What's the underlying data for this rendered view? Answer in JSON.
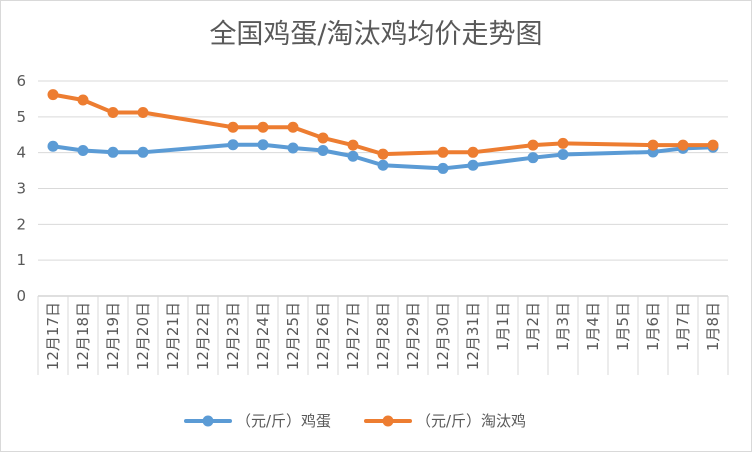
{
  "chart_data": {
    "type": "line",
    "title": "全国鸡蛋/淘汰鸡均价走势图",
    "categories": [
      "12月17日",
      "12月18日",
      "12月19日",
      "12月20日",
      "12月21日",
      "12月22日",
      "12月23日",
      "12月24日",
      "12月25日",
      "12月26日",
      "12月27日",
      "12月28日",
      "12月29日",
      "12月30日",
      "12月31日",
      "1月1日",
      "1月2日",
      "1月3日",
      "1月4日",
      "1月5日",
      "1月6日",
      "1月7日",
      "1月8日"
    ],
    "yticks": [
      "0",
      "1",
      "2",
      "3",
      "4",
      "5",
      "6"
    ],
    "ylim": [
      0,
      6
    ],
    "grid": true,
    "legend_position": "bottom",
    "series": [
      {
        "name": "（元/斤）鸡蛋",
        "color": "#5b9bd5",
        "values": [
          4.18,
          4.06,
          4.01,
          4.01,
          null,
          null,
          4.22,
          4.22,
          4.13,
          4.06,
          3.9,
          3.65,
          null,
          3.56,
          3.65,
          null,
          3.86,
          3.95,
          null,
          null,
          4.02,
          4.12,
          4.15
        ]
      },
      {
        "name": "（元/斤）淘汰鸡",
        "color": "#ed7d31",
        "values": [
          5.62,
          5.47,
          5.12,
          5.12,
          null,
          null,
          4.71,
          4.71,
          4.71,
          4.41,
          4.21,
          3.96,
          null,
          4.01,
          4.01,
          null,
          4.21,
          4.26,
          null,
          null,
          4.21,
          4.21,
          4.21
        ]
      }
    ]
  }
}
